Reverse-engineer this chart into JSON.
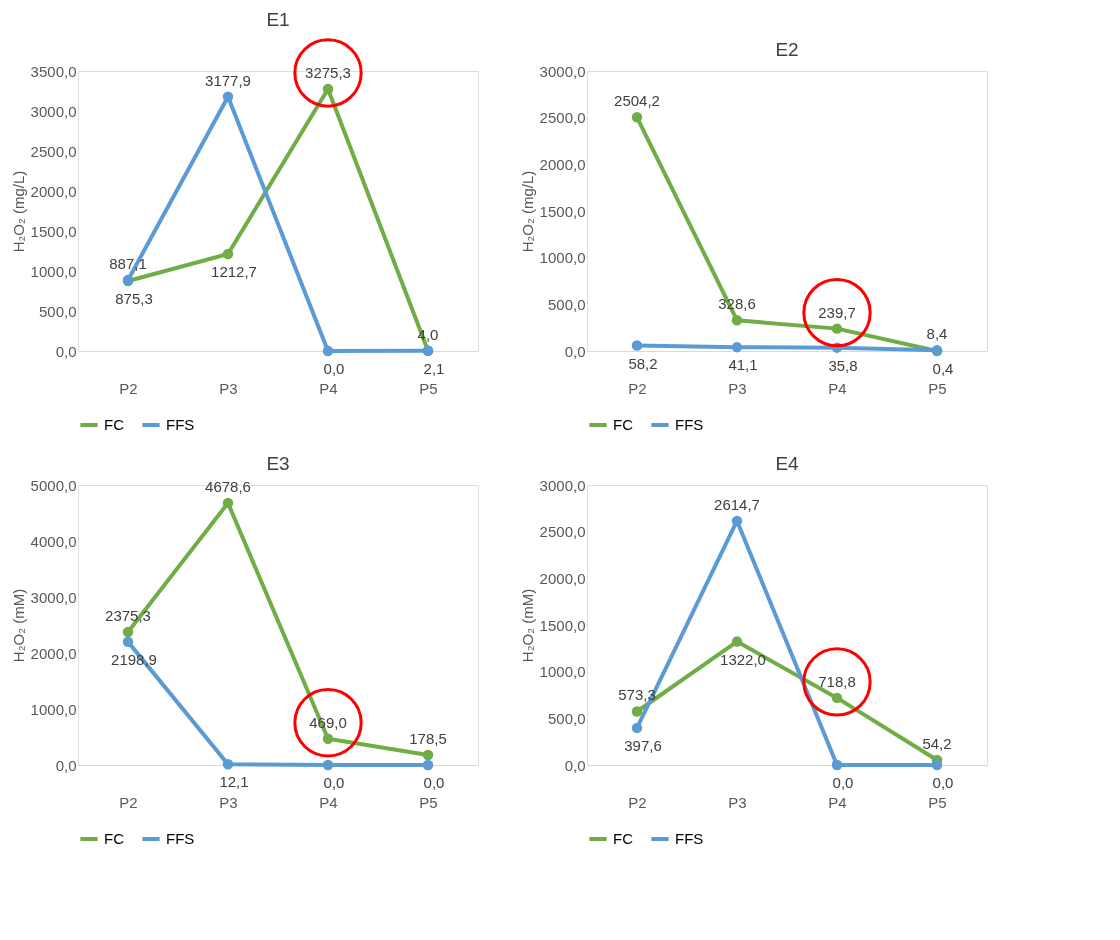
{
  "chart_data": [
    {
      "type": "line",
      "title": "E1",
      "ylabel": "H₂O₂ (mg/L)",
      "categories": [
        "P2",
        "P3",
        "P4",
        "P5"
      ],
      "ylim": [
        0,
        3500
      ],
      "yticks": [
        {
          "value": 0,
          "label": "0,0"
        },
        {
          "value": 500,
          "label": "500,0"
        },
        {
          "value": 1000,
          "label": "1000,0"
        },
        {
          "value": 1500,
          "label": "1500,0"
        },
        {
          "value": 2000,
          "label": "2000,0"
        },
        {
          "value": 2500,
          "label": "2500,0"
        },
        {
          "value": 3000,
          "label": "3000,0"
        },
        {
          "value": 3500,
          "label": "3500,0"
        }
      ],
      "grid": false,
      "legend": "bottom",
      "marker": "circle",
      "series": [
        {
          "name": "FC",
          "color": "#70ad47",
          "values": [
            875.3,
            1212.7,
            3275.3,
            4.0
          ],
          "value_labels": [
            "875,3",
            "1212,7",
            "3275,3",
            "4,0"
          ]
        },
        {
          "name": "FFS",
          "color": "#5b9bd5",
          "values": [
            887.1,
            3177.9,
            0.0,
            2.1
          ],
          "value_labels": [
            "887,1",
            "3177,9",
            "0,0",
            "2,1"
          ]
        }
      ]
    },
    {
      "type": "line",
      "title": "E2",
      "ylabel": "H₂O₂ (mg/L)",
      "categories": [
        "P2",
        "P3",
        "P4",
        "P5"
      ],
      "ylim": [
        0,
        3000
      ],
      "yticks": [
        {
          "value": 0,
          "label": "0,0"
        },
        {
          "value": 500,
          "label": "500,0"
        },
        {
          "value": 1000,
          "label": "1000,0"
        },
        {
          "value": 1500,
          "label": "1500,0"
        },
        {
          "value": 2000,
          "label": "2000,0"
        },
        {
          "value": 2500,
          "label": "2500,0"
        },
        {
          "value": 3000,
          "label": "3000,0"
        }
      ],
      "grid": false,
      "legend": "bottom",
      "marker": "circle",
      "series": [
        {
          "name": "FC",
          "color": "#70ad47",
          "values": [
            2504.2,
            328.6,
            239.7,
            0.4
          ],
          "value_labels": [
            "2504,2",
            "328,6",
            "239,7",
            "0,4"
          ]
        },
        {
          "name": "FFS",
          "color": "#5b9bd5",
          "values": [
            58.2,
            41.1,
            35.8,
            8.4
          ],
          "value_labels": [
            "58,2",
            "41,1",
            "35,8",
            "8,4"
          ]
        }
      ]
    },
    {
      "type": "line",
      "title": "E3",
      "ylabel": "H₂O₂ (mM)",
      "categories": [
        "P2",
        "P3",
        "P4",
        "P5"
      ],
      "ylim": [
        0,
        5000
      ],
      "yticks": [
        {
          "value": 0,
          "label": "0,0"
        },
        {
          "value": 1000,
          "label": "1000,0"
        },
        {
          "value": 2000,
          "label": "2000,0"
        },
        {
          "value": 3000,
          "label": "3000,0"
        },
        {
          "value": 4000,
          "label": "4000,0"
        },
        {
          "value": 5000,
          "label": "5000,0"
        }
      ],
      "grid": false,
      "legend": "bottom",
      "marker": "circle",
      "series": [
        {
          "name": "FC",
          "color": "#70ad47",
          "values": [
            2375.3,
            4678.6,
            469.0,
            178.5
          ],
          "value_labels": [
            "2375,3",
            "4678,6",
            "469,0",
            "178,5"
          ]
        },
        {
          "name": "FFS",
          "color": "#5b9bd5",
          "values": [
            2198.9,
            12.1,
            0.0,
            0.0
          ],
          "value_labels": [
            "2198,9",
            "12,1",
            "0,0",
            "0,0"
          ]
        }
      ]
    },
    {
      "type": "line",
      "title": "E4",
      "ylabel": "H₂O₂ (mM)",
      "categories": [
        "P2",
        "P3",
        "P4",
        "P5"
      ],
      "ylim": [
        0,
        3000
      ],
      "yticks": [
        {
          "value": 0,
          "label": "0,0"
        },
        {
          "value": 500,
          "label": "500,0"
        },
        {
          "value": 1000,
          "label": "1000,0"
        },
        {
          "value": 1500,
          "label": "1500,0"
        },
        {
          "value": 2000,
          "label": "2000,0"
        },
        {
          "value": 2500,
          "label": "2500,0"
        },
        {
          "value": 3000,
          "label": "3000,0"
        }
      ],
      "grid": false,
      "legend": "bottom",
      "marker": "circle",
      "series": [
        {
          "name": "FC",
          "color": "#70ad47",
          "values": [
            573.3,
            1322.0,
            718.8,
            54.2
          ],
          "value_labels": [
            "573,3",
            "1322,0",
            "718,8",
            "54,2"
          ]
        },
        {
          "name": "FFS",
          "color": "#5b9bd5",
          "values": [
            397.6,
            2614.7,
            0.0,
            0.0
          ],
          "value_labels": [
            "397,6",
            "2614,7",
            "0,0",
            "0,0"
          ]
        }
      ]
    }
  ]
}
